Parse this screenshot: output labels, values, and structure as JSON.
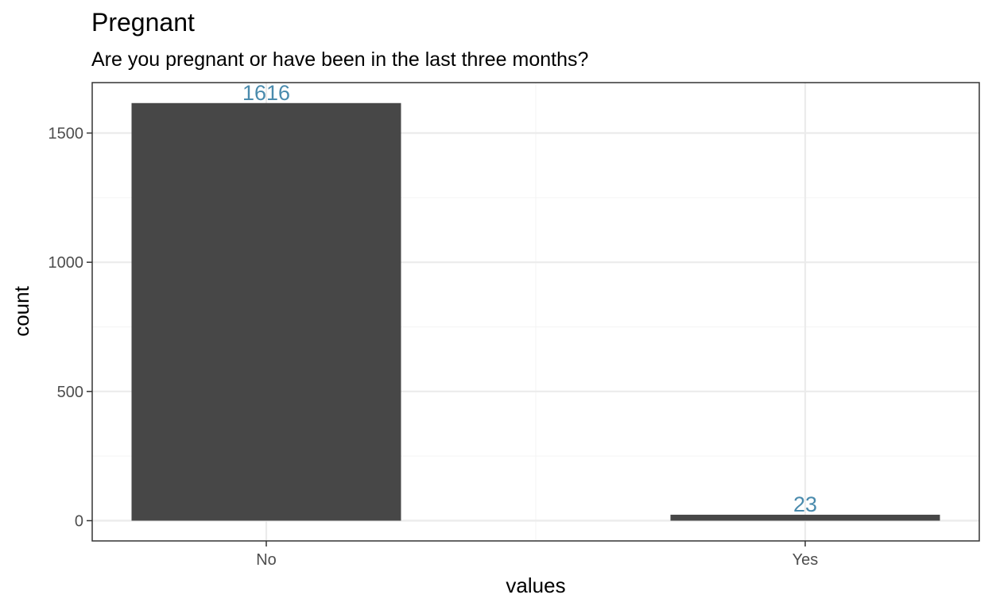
{
  "chart_data": {
    "type": "bar",
    "title": "Pregnant",
    "subtitle": "Are you pregnant or have been in the last three months?",
    "xlabel": "values",
    "ylabel": "count",
    "categories": [
      "No",
      "Yes"
    ],
    "values": [
      1616,
      23
    ],
    "data_labels": [
      "1616",
      "23"
    ],
    "ylim": [
      -80,
      1690
    ],
    "y_ticks": [
      0,
      500,
      1000,
      1500
    ],
    "y_tick_labels": [
      "0",
      "500",
      "1000",
      "1500"
    ],
    "grid": true,
    "legend": "none",
    "colors": {
      "bar": "#474747",
      "label": "#4a8bad",
      "grid_major": "#ebebeb",
      "grid_minor": "#f5f5f5",
      "panel_border": "#333333",
      "axis_text": "#4d4d4d",
      "title_text": "#000000"
    }
  }
}
